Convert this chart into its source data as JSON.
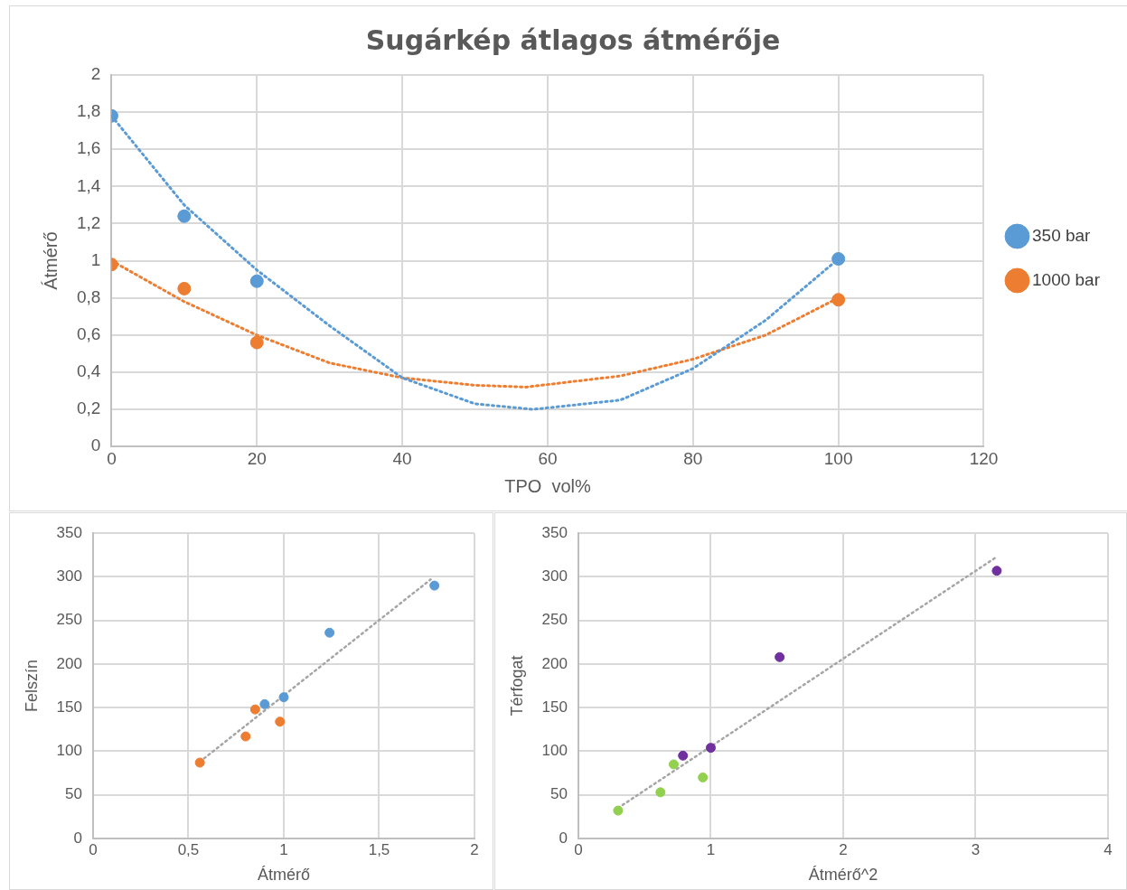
{
  "chart_data": [
    {
      "type": "scatter",
      "title": "Sugárkép átlagos átmérője",
      "xlabel": "TPO  vol%",
      "ylabel": "Átmérő",
      "marker": "circle",
      "grid": true,
      "legend": "right",
      "xlim": [
        0,
        120
      ],
      "xticks": [
        0,
        20,
        40,
        60,
        80,
        100,
        120
      ],
      "ylim": [
        0,
        2
      ],
      "yticks": [
        0,
        {
          "value": 0.2,
          "label": "0,2"
        },
        {
          "value": 0.4,
          "label": "0,4"
        },
        {
          "value": 0.6,
          "label": "0,6"
        },
        {
          "value": 0.8,
          "label": "0,8"
        },
        1,
        {
          "value": 1.2,
          "label": "1,2"
        },
        {
          "value": 1.4,
          "label": "1,4"
        },
        {
          "value": 1.6,
          "label": "1,6"
        },
        {
          "value": 1.8,
          "label": "1,8"
        },
        2
      ],
      "series": [
        {
          "name": "350 bar",
          "color": "#5b9bd5",
          "x": [
            0,
            10,
            20,
            100
          ],
          "values": [
            1.78,
            1.24,
            0.89,
            1.01
          ]
        },
        {
          "name": "1000 bar",
          "color": "#ed7d31",
          "x": [
            0,
            10,
            20,
            100
          ],
          "values": [
            0.98,
            0.85,
            0.56,
            0.79
          ]
        },
        {
          "type": "line",
          "color": "#5b9bd5",
          "line_style": "dotted",
          "marker": "none",
          "x": [
            0,
            10,
            20,
            30,
            40,
            50,
            58,
            70,
            80,
            90,
            100
          ],
          "values": [
            1.78,
            1.3,
            0.95,
            0.65,
            0.37,
            0.23,
            0.2,
            0.25,
            0.42,
            0.68,
            1.01
          ]
        },
        {
          "type": "line",
          "color": "#ed7d31",
          "line_style": "dotted",
          "marker": "none",
          "x": [
            0,
            10,
            20,
            30,
            40,
            50,
            57,
            70,
            80,
            90,
            100
          ],
          "values": [
            1.0,
            0.78,
            0.6,
            0.45,
            0.37,
            0.33,
            0.32,
            0.38,
            0.47,
            0.6,
            0.8
          ]
        }
      ]
    },
    {
      "type": "scatter",
      "xlabel": "Átmérő",
      "ylabel": "Felszín",
      "marker": "circle",
      "grid": true,
      "xlim": [
        0,
        2
      ],
      "xticks": [
        0,
        {
          "value": 0.5,
          "label": "0,5"
        },
        1,
        {
          "value": 1.5,
          "label": "1,5"
        },
        2
      ],
      "ylim": [
        0,
        350
      ],
      "yticks": [
        0,
        50,
        100,
        150,
        200,
        250,
        300,
        350
      ],
      "series": [
        {
          "color": "#5b9bd5",
          "x": [
            1.79,
            1.24,
            1.0,
            0.9
          ],
          "values": [
            290,
            236,
            162,
            154
          ]
        },
        {
          "color": "#ed7d31",
          "x": [
            0.56,
            0.85,
            0.8,
            0.98
          ],
          "values": [
            87,
            148,
            117,
            134
          ]
        },
        {
          "type": "line",
          "color": "#a5a5a5",
          "line_style": "dotted",
          "marker": "none",
          "x": [
            0.56,
            1.77
          ],
          "values": [
            88,
            297
          ]
        }
      ]
    },
    {
      "type": "scatter",
      "xlabel": "Átmérő^2",
      "ylabel": "Térfogat",
      "marker": "circle",
      "grid": true,
      "xlim": [
        0,
        4
      ],
      "xticks": [
        0,
        1,
        2,
        3,
        4
      ],
      "ylim": [
        0,
        350
      ],
      "yticks": [
        0,
        50,
        100,
        150,
        200,
        250,
        300,
        350
      ],
      "series": [
        {
          "color": "#7030a0",
          "x": [
            3.16,
            1.52,
            1.0,
            0.79
          ],
          "values": [
            307,
            208,
            104,
            95
          ]
        },
        {
          "color": "#92d050",
          "x": [
            0.3,
            0.72,
            0.62,
            0.94
          ],
          "values": [
            32,
            85,
            53,
            70
          ]
        },
        {
          "type": "line",
          "color": "#a5a5a5",
          "line_style": "dotted",
          "marker": "none",
          "x": [
            0.3,
            3.16
          ],
          "values": [
            35,
            323
          ]
        }
      ]
    }
  ]
}
